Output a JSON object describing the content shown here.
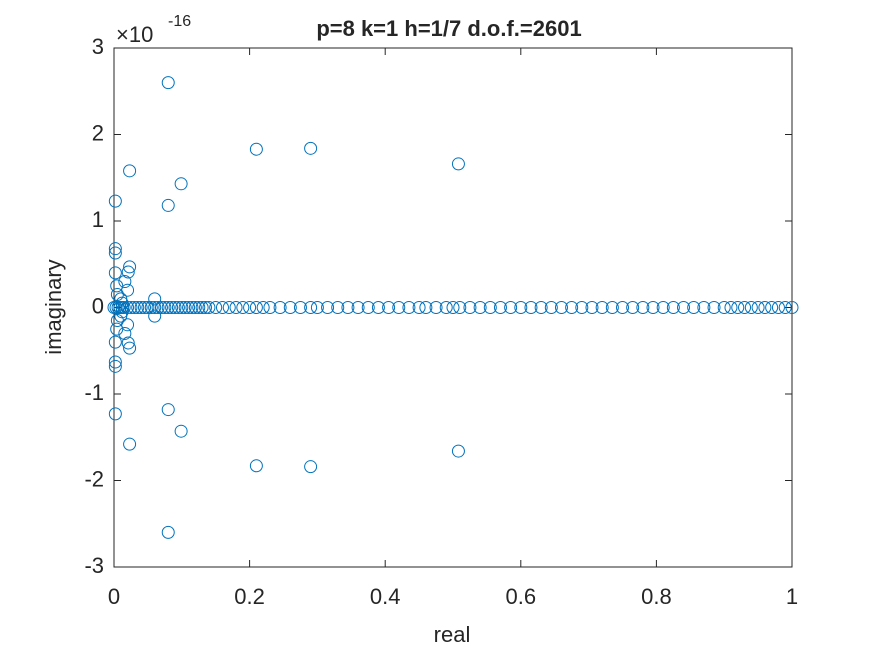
{
  "chart_data": {
    "type": "scatter",
    "title": "p=8 k=1 h=1/7 d.o.f.=2601",
    "xlabel": "real",
    "ylabel": "imaginary",
    "y_scale_base": "×10",
    "y_scale_exponent": "-16",
    "color": "#0072BD",
    "xlim": [
      0,
      1
    ],
    "ylim": [
      -3,
      3
    ],
    "xticks": [
      0,
      0.2,
      0.4,
      0.6,
      0.8,
      1
    ],
    "yticks": [
      -3,
      -2,
      -1,
      0,
      1,
      2,
      3
    ],
    "points": [
      [
        0,
        0
      ],
      [
        0.003,
        0
      ],
      [
        0.006,
        0
      ],
      [
        0.009,
        0
      ],
      [
        0.012,
        0
      ],
      [
        0.015,
        0
      ],
      [
        0.02,
        0
      ],
      [
        0.025,
        0
      ],
      [
        0.03,
        0
      ],
      [
        0.035,
        0
      ],
      [
        0.04,
        0
      ],
      [
        0.045,
        0
      ],
      [
        0.05,
        0
      ],
      [
        0.055,
        0
      ],
      [
        0.06,
        0
      ],
      [
        0.065,
        0
      ],
      [
        0.07,
        0
      ],
      [
        0.075,
        0
      ],
      [
        0.08,
        0
      ],
      [
        0.085,
        0
      ],
      [
        0.09,
        0
      ],
      [
        0.095,
        0
      ],
      [
        0.1,
        0
      ],
      [
        0.105,
        0
      ],
      [
        0.11,
        0
      ],
      [
        0.115,
        0
      ],
      [
        0.12,
        0
      ],
      [
        0.125,
        0
      ],
      [
        0.13,
        0
      ],
      [
        0.135,
        0
      ],
      [
        0.14,
        0
      ],
      [
        0.15,
        0
      ],
      [
        0.16,
        0
      ],
      [
        0.17,
        0
      ],
      [
        0.18,
        0
      ],
      [
        0.19,
        0
      ],
      [
        0.2,
        0
      ],
      [
        0.21,
        0
      ],
      [
        0.22,
        0
      ],
      [
        0.23,
        0
      ],
      [
        0.245,
        0
      ],
      [
        0.26,
        0
      ],
      [
        0.275,
        0
      ],
      [
        0.29,
        0
      ],
      [
        0.3,
        0
      ],
      [
        0.315,
        0
      ],
      [
        0.33,
        0
      ],
      [
        0.345,
        0
      ],
      [
        0.36,
        0
      ],
      [
        0.375,
        0
      ],
      [
        0.39,
        0
      ],
      [
        0.405,
        0
      ],
      [
        0.42,
        0
      ],
      [
        0.435,
        0
      ],
      [
        0.45,
        0
      ],
      [
        0.46,
        0
      ],
      [
        0.475,
        0
      ],
      [
        0.49,
        0
      ],
      [
        0.5,
        0
      ],
      [
        0.51,
        0
      ],
      [
        0.525,
        0
      ],
      [
        0.54,
        0
      ],
      [
        0.555,
        0
      ],
      [
        0.57,
        0
      ],
      [
        0.585,
        0
      ],
      [
        0.6,
        0
      ],
      [
        0.615,
        0
      ],
      [
        0.63,
        0
      ],
      [
        0.645,
        0
      ],
      [
        0.66,
        0
      ],
      [
        0.675,
        0
      ],
      [
        0.69,
        0
      ],
      [
        0.705,
        0
      ],
      [
        0.72,
        0
      ],
      [
        0.735,
        0
      ],
      [
        0.75,
        0
      ],
      [
        0.765,
        0
      ],
      [
        0.78,
        0
      ],
      [
        0.795,
        0
      ],
      [
        0.81,
        0
      ],
      [
        0.825,
        0
      ],
      [
        0.84,
        0
      ],
      [
        0.855,
        0
      ],
      [
        0.87,
        0
      ],
      [
        0.885,
        0
      ],
      [
        0.9,
        0
      ],
      [
        0.91,
        0
      ],
      [
        0.92,
        0
      ],
      [
        0.93,
        0
      ],
      [
        0.94,
        0
      ],
      [
        0.95,
        0
      ],
      [
        0.96,
        0
      ],
      [
        0.97,
        0
      ],
      [
        0.98,
        0
      ],
      [
        0.99,
        0
      ],
      [
        1,
        0
      ],
      [
        0.08,
        2.6
      ],
      [
        0.08,
        -2.6
      ],
      [
        0.21,
        1.83
      ],
      [
        0.21,
        -1.83
      ],
      [
        0.29,
        1.84
      ],
      [
        0.29,
        -1.84
      ],
      [
        0.508,
        1.66
      ],
      [
        0.508,
        -1.66
      ],
      [
        0.023,
        1.58
      ],
      [
        0.023,
        -1.58
      ],
      [
        0.099,
        1.43
      ],
      [
        0.099,
        -1.43
      ],
      [
        0.08,
        1.18
      ],
      [
        0.08,
        -1.18
      ],
      [
        0.002,
        1.23
      ],
      [
        0.002,
        -1.23
      ],
      [
        0.002,
        0.68
      ],
      [
        0.002,
        0.63
      ],
      [
        0.002,
        -0.63
      ],
      [
        0.002,
        -0.68
      ],
      [
        0.023,
        0.47
      ],
      [
        0.021,
        0.41
      ],
      [
        0.023,
        -0.47
      ],
      [
        0.021,
        -0.41
      ],
      [
        0.002,
        0.4
      ],
      [
        0.002,
        -0.4
      ],
      [
        0.016,
        0.3
      ],
      [
        0.016,
        -0.3
      ],
      [
        0.02,
        0.2
      ],
      [
        0.02,
        -0.2
      ],
      [
        0.06,
        0.1
      ],
      [
        0.06,
        -0.1
      ],
      [
        0.01,
        0.1
      ],
      [
        0.01,
        -0.1
      ],
      [
        0.005,
        0.15
      ],
      [
        0.005,
        -0.15
      ],
      [
        0.004,
        0.25
      ],
      [
        0.004,
        -0.25
      ],
      [
        0.012,
        0.05
      ],
      [
        0.012,
        -0.05
      ]
    ]
  }
}
